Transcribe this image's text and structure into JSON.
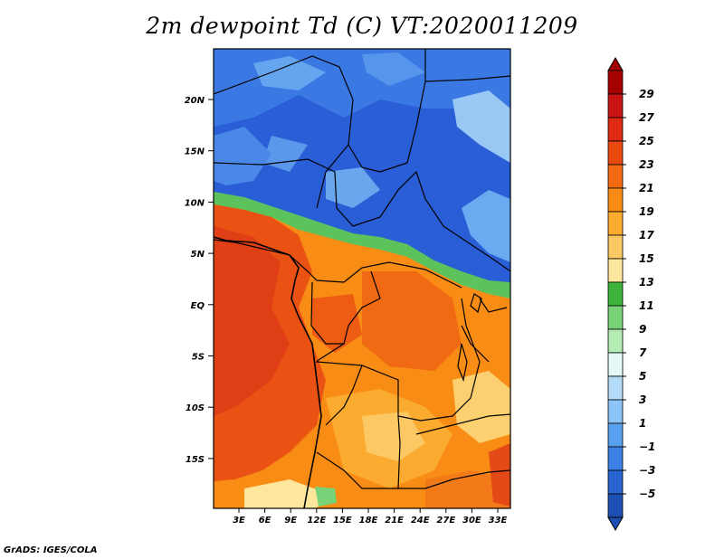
{
  "title": "2m dewpoint Td (C) VT:2020011209",
  "credit": "GrADS: IGES/COLA",
  "map": {
    "lat_labels": [
      "20N",
      "15N",
      "10N",
      "5N",
      "EQ",
      "5S",
      "10S",
      "15S"
    ],
    "lon_labels": [
      "3E",
      "6E",
      "9E",
      "12E",
      "15E",
      "18E",
      "21E",
      "24E",
      "27E",
      "30E",
      "33E"
    ]
  },
  "colorbar": {
    "labels": [
      "29",
      "27",
      "25",
      "23",
      "21",
      "19",
      "17",
      "15",
      "13",
      "11",
      "9",
      "7",
      "5",
      "3",
      "1",
      "−1",
      "−3",
      "−5"
    ],
    "colors": [
      "#a50000",
      "#c81414",
      "#e02a14",
      "#ea4a10",
      "#f26a12",
      "#f98c14",
      "#fbab30",
      "#fcc864",
      "#fde79c",
      "#3cb43c",
      "#78d278",
      "#b4ebb4",
      "#e4f8f8",
      "#b4dcf8",
      "#8cc4f8",
      "#5aa0f0",
      "#3c82e6",
      "#2864d2",
      "#1e50b4"
    ]
  },
  "colors": {
    "cold": "#2a60d8",
    "cold_light": "#5aa0f0",
    "warm": "#f07020",
    "hot": "#e44a18",
    "mild": "#f9a030",
    "pale": "#fcc864"
  }
}
